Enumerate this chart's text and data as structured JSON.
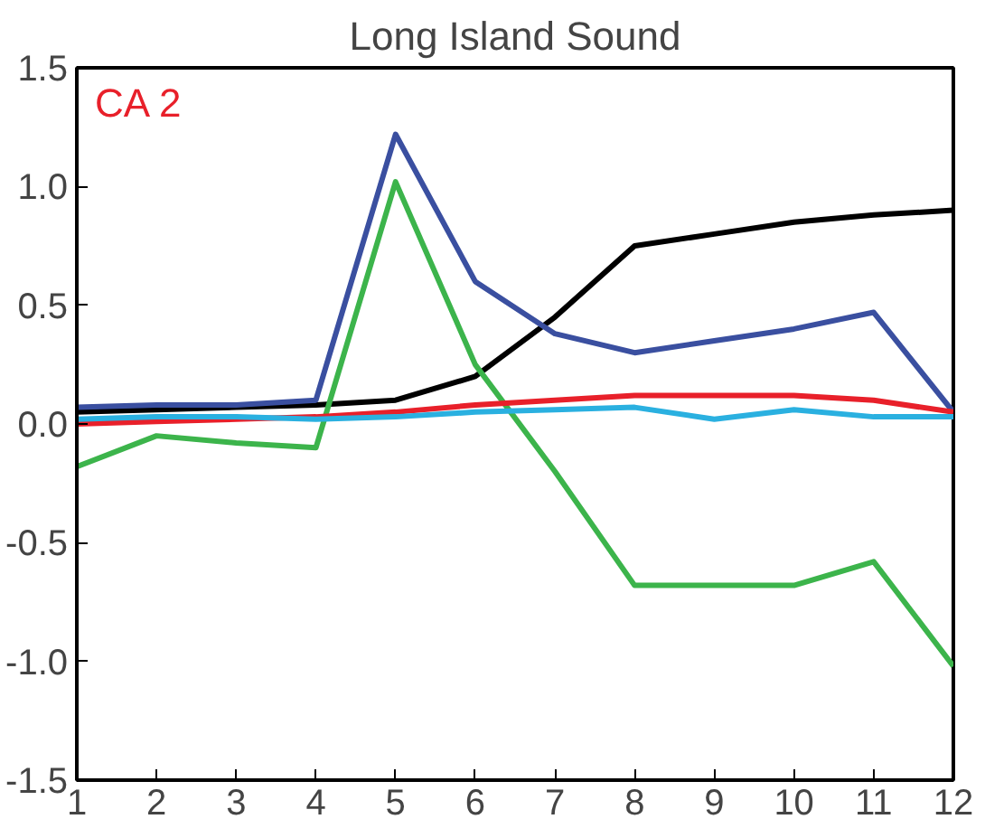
{
  "chart_data": {
    "type": "line",
    "title": "Long Island Sound",
    "annotations": [
      "CA 2"
    ],
    "x": [
      1,
      2,
      3,
      4,
      5,
      6,
      7,
      8,
      9,
      10,
      11,
      12
    ],
    "xlim": [
      1,
      12
    ],
    "xticks": [
      1,
      2,
      3,
      4,
      5,
      6,
      7,
      8,
      9,
      10,
      11,
      12
    ],
    "ylim": [
      -1.5,
      1.5
    ],
    "yticks": [
      {
        "value": -1.5,
        "label": "-1.5"
      },
      {
        "value": -1,
        "label": "-1.0"
      },
      {
        "value": -0.5,
        "label": "-0.5"
      },
      {
        "value": 0,
        "label": "0.0"
      },
      {
        "value": 0.5,
        "label": "0.5"
      },
      {
        "value": 1,
        "label": "1.0"
      },
      {
        "value": 1.5,
        "label": "1.5"
      }
    ],
    "grid": false,
    "marker": "none",
    "line_style": "solid",
    "series": [
      {
        "color": "#000000",
        "values": [
          0.05,
          0.06,
          0.07,
          0.08,
          0.1,
          0.2,
          0.45,
          0.75,
          0.8,
          0.85,
          0.88,
          0.9
        ]
      },
      {
        "color": "#3a4fa0",
        "values": [
          0.07,
          0.08,
          0.08,
          0.1,
          1.22,
          0.6,
          0.38,
          0.3,
          0.35,
          0.4,
          0.47,
          0.05
        ]
      },
      {
        "color": "#3cb44b",
        "values": [
          -0.18,
          -0.05,
          -0.08,
          -0.1,
          1.02,
          0.25,
          -0.2,
          -0.68,
          -0.68,
          -0.68,
          -0.58,
          -1.02
        ]
      },
      {
        "color": "#e8202a",
        "values": [
          0.0,
          0.01,
          0.02,
          0.03,
          0.05,
          0.08,
          0.1,
          0.12,
          0.12,
          0.12,
          0.1,
          0.05
        ]
      },
      {
        "color": "#2ab0e0",
        "values": [
          0.02,
          0.03,
          0.03,
          0.02,
          0.03,
          0.05,
          0.06,
          0.07,
          0.02,
          0.06,
          0.03,
          0.03
        ]
      }
    ]
  }
}
